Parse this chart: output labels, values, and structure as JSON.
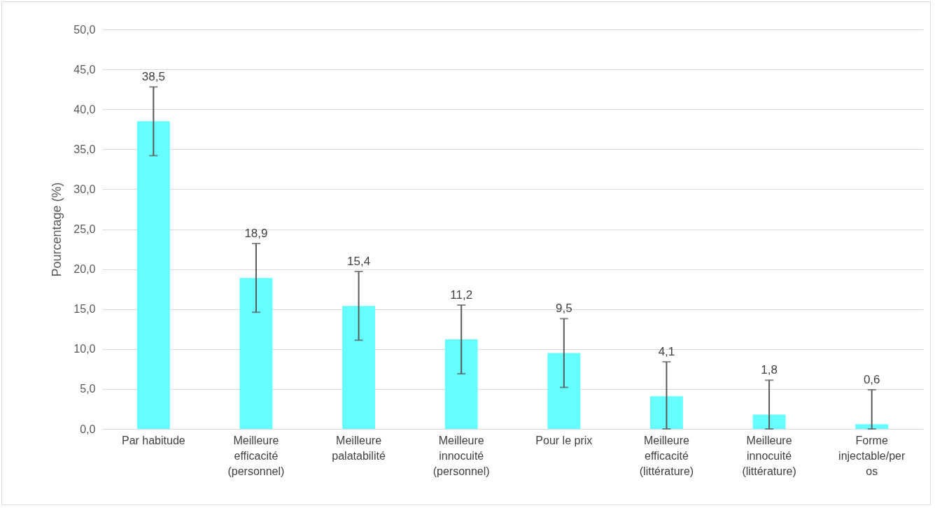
{
  "chart_data": {
    "type": "bar",
    "ylabel": "Pourcentage (%)",
    "categories": [
      "Par habitude",
      "Meilleure efficacité (personnel)",
      "Meilleure palatabilité",
      "Meilleure innocuité (personnel)",
      "Pour le prix",
      "Meilleure efficacité (littérature)",
      "Meilleure innocuité (littérature)",
      "Forme injectable/per os"
    ],
    "values": [
      38.5,
      18.9,
      15.4,
      11.2,
      9.5,
      4.1,
      1.8,
      0.6
    ],
    "errors": [
      4.3,
      4.3,
      4.3,
      4.3,
      4.3,
      [
        0,
        8.4
      ],
      [
        0,
        6.1
      ],
      [
        0,
        4.9
      ]
    ],
    "color": "#66ffff",
    "value_labels": [
      "38,5",
      "18,9",
      "15,4",
      "11,2",
      "9,5",
      "4,1",
      "1,8",
      "0,6"
    ],
    "ylim": [
      0,
      50
    ],
    "yticks": [
      {
        "value": 0,
        "label": "0,0"
      },
      {
        "value": 5,
        "label": "5,0"
      },
      {
        "value": 10,
        "label": "10,0"
      },
      {
        "value": 15,
        "label": "15,0"
      },
      {
        "value": 20,
        "label": "20,0"
      },
      {
        "value": 25,
        "label": "25,0"
      },
      {
        "value": 30,
        "label": "30,0"
      },
      {
        "value": 35,
        "label": "35,0"
      },
      {
        "value": 40,
        "label": "40,0"
      },
      {
        "value": 45,
        "label": "45,0"
      },
      {
        "value": 50,
        "label": "50,0"
      }
    ],
    "grid": "y"
  }
}
